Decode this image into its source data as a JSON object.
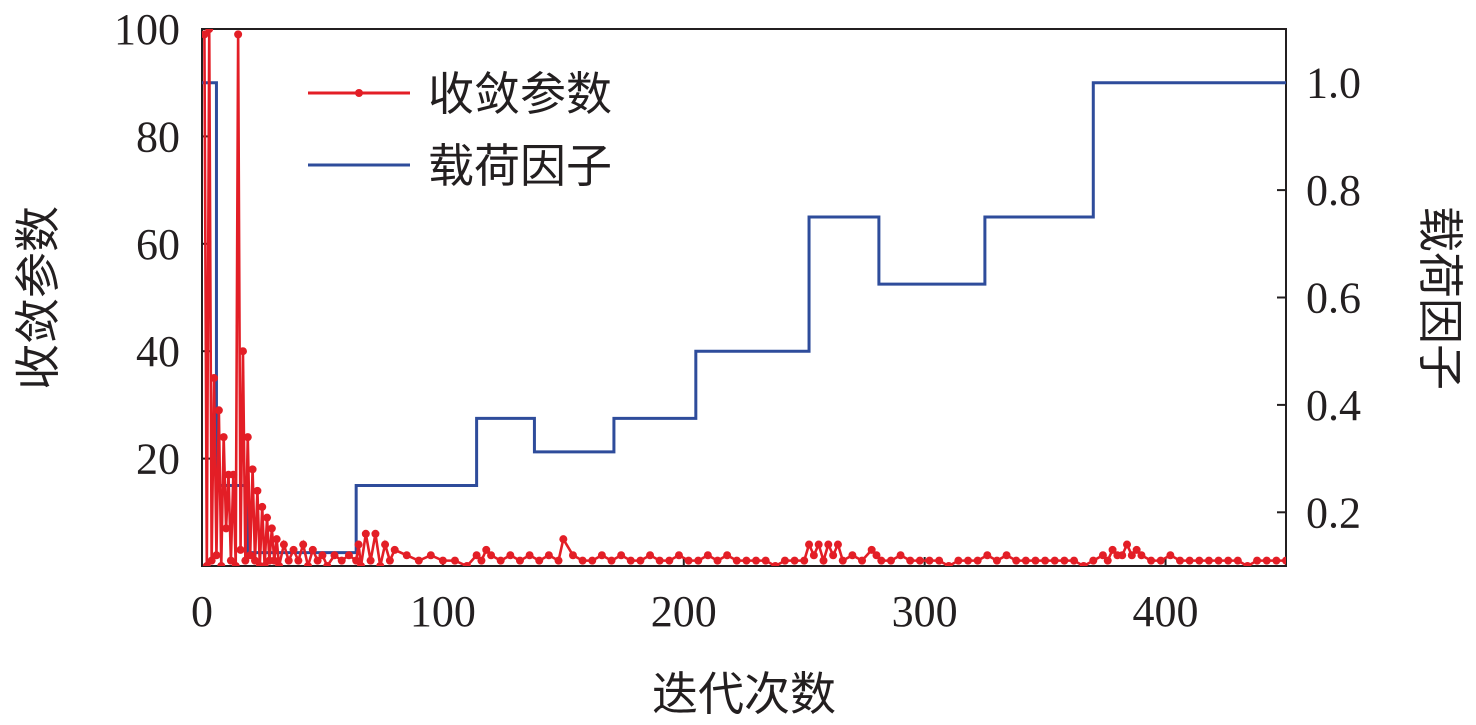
{
  "chart_data": {
    "type": "line",
    "xlabel": "迭代次数",
    "ylabel_left": "收敛参数",
    "ylabel_right": "载荷因子",
    "xlim": [
      0,
      450
    ],
    "ylim_left": [
      0,
      100
    ],
    "ylim_right": [
      0.1,
      1.1
    ],
    "x_ticks": [
      {
        "value": 0,
        "label": "0"
      },
      {
        "value": 100,
        "label": "100"
      },
      {
        "value": 200,
        "label": "200"
      },
      {
        "value": 300,
        "label": "300"
      },
      {
        "value": 400,
        "label": "400"
      }
    ],
    "y_left_ticks": [
      {
        "value": 20,
        "label": "20"
      },
      {
        "value": 40,
        "label": "40"
      },
      {
        "value": 60,
        "label": "60"
      },
      {
        "value": 80,
        "label": "80"
      },
      {
        "value": 100,
        "label": "100"
      }
    ],
    "y_right_ticks": [
      {
        "value": 0.2,
        "label": "0.2"
      },
      {
        "value": 0.4,
        "label": "0.4"
      },
      {
        "value": 0.6,
        "label": "0.6"
      },
      {
        "value": 0.8,
        "label": "0.8"
      },
      {
        "value": 1.0,
        "label": "1.0"
      }
    ],
    "legend": {
      "position": "top-left",
      "entries": [
        "收敛参数",
        "载荷因子"
      ]
    },
    "grid": false,
    "series": [
      {
        "name": "收敛参数",
        "axis": "left",
        "color": "#e31e26",
        "marker": "circle",
        "x": [
          1,
          2,
          3,
          4,
          5,
          6,
          7,
          8,
          9,
          10,
          11,
          12,
          13,
          14,
          15,
          16,
          17,
          18,
          19,
          20,
          21,
          22,
          23,
          24,
          25,
          26,
          27,
          28,
          29,
          30,
          31,
          32,
          34,
          36,
          38,
          40,
          42,
          44,
          46,
          48,
          50,
          52,
          55,
          58,
          61,
          64,
          65,
          66,
          68,
          70,
          72,
          74,
          76,
          78,
          80,
          85,
          90,
          95,
          100,
          105,
          110,
          114,
          116,
          118,
          120,
          124,
          128,
          132,
          136,
          140,
          144,
          148,
          150,
          154,
          158,
          162,
          166,
          170,
          174,
          178,
          182,
          186,
          190,
          194,
          198,
          202,
          206,
          210,
          214,
          218,
          222,
          226,
          230,
          234,
          238,
          242,
          246,
          250,
          252,
          254,
          256,
          258,
          260,
          262,
          264,
          266,
          270,
          274,
          278,
          280,
          282,
          286,
          290,
          294,
          298,
          302,
          306,
          310,
          314,
          318,
          322,
          326,
          330,
          334,
          338,
          342,
          346,
          350,
          354,
          358,
          362,
          366,
          370,
          374,
          376,
          378,
          380,
          382,
          384,
          386,
          388,
          390,
          394,
          398,
          402,
          406,
          410,
          414,
          418,
          422,
          426,
          430,
          434,
          438,
          442,
          446,
          450
        ],
        "y": [
          99,
          0,
          100,
          1,
          35,
          2,
          29,
          0,
          24,
          7,
          17,
          1,
          17,
          0,
          99,
          3,
          40,
          1,
          24,
          2,
          18,
          1,
          14,
          0,
          11,
          0,
          9,
          1,
          7,
          1,
          5,
          0,
          4,
          1,
          3,
          1,
          4,
          0,
          3,
          1,
          2,
          0,
          2,
          1,
          2,
          1,
          4,
          0,
          6,
          1,
          6,
          0,
          4,
          1,
          3,
          2,
          1,
          2,
          1,
          1,
          0,
          2,
          1,
          3,
          2,
          1,
          2,
          1,
          2,
          1,
          2,
          1,
          5,
          2,
          1,
          1,
          2,
          1,
          2,
          1,
          1,
          2,
          1,
          1,
          2,
          1,
          1,
          2,
          1,
          2,
          1,
          1,
          1,
          1,
          0,
          1,
          1,
          1,
          4,
          2,
          4,
          1,
          4,
          2,
          4,
          1,
          2,
          1,
          3,
          2,
          1,
          1,
          2,
          1,
          1,
          1,
          1,
          0,
          1,
          1,
          1,
          2,
          1,
          2,
          1,
          1,
          1,
          1,
          1,
          1,
          1,
          0,
          1,
          2,
          1,
          3,
          2,
          2,
          4,
          2,
          3,
          2,
          1,
          1,
          2,
          1,
          1,
          1,
          1,
          1,
          1,
          1,
          0,
          1,
          1,
          1,
          1
        ]
      },
      {
        "name": "载荷因子",
        "axis": "right",
        "color": "#2e4c9b",
        "step": "post",
        "x": [
          0,
          4,
          6,
          17,
          19,
          64,
          114,
          138,
          171,
          205,
          252,
          281,
          325,
          370,
          450
        ],
        "y": [
          1.0,
          1.0,
          0.25,
          0.25,
          0.125,
          0.25,
          0.375,
          0.3125,
          0.375,
          0.5,
          0.75,
          0.625,
          0.75,
          1.0,
          1.0
        ]
      }
    ]
  }
}
